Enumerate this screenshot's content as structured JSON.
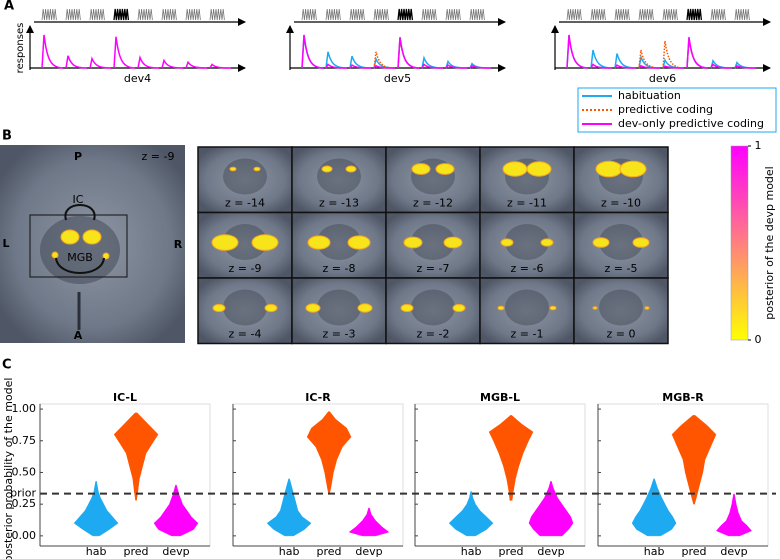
{
  "panel_a": {
    "label": "A",
    "ylabel": "responses",
    "series": [
      {
        "name": "habituation",
        "color": "#1eaaf1",
        "style": "solid"
      },
      {
        "name": "predictive coding",
        "color": "#ff5500",
        "style": "dotted"
      },
      {
        "name": "dev-only predictive coding",
        "color": "#ff00ff",
        "style": "solid"
      }
    ],
    "plots": [
      {
        "xlabel": "dev4",
        "deviant": 4,
        "responses": [
          [
            null,
            null,
            null,
            null,
            null,
            null,
            null,
            null
          ],
          [
            null,
            null,
            null,
            null,
            null,
            null,
            null,
            null
          ],
          [
            0.92,
            0.34,
            0.26,
            0.87,
            0.29,
            0.21,
            0.16,
            0.1
          ]
        ]
      },
      {
        "xlabel": "dev5",
        "deviant": 5,
        "responses": [
          [
            0.9,
            0.45,
            0.33,
            0.25,
            0.85,
            0.28,
            0.18,
            0.12
          ],
          [
            null,
            null,
            null,
            0.45,
            0.85,
            null,
            null,
            null
          ],
          [
            0.92,
            0.1,
            0.08,
            0.06,
            0.85,
            0.1,
            0.08,
            0.06
          ]
        ]
      },
      {
        "xlabel": "dev6",
        "deviant": 6,
        "responses": [
          [
            0.9,
            0.5,
            0.4,
            0.3,
            0.22,
            0.85,
            0.2,
            0.15
          ],
          [
            null,
            null,
            null,
            0.5,
            0.75,
            0.85,
            null,
            null
          ],
          [
            0.92,
            0.1,
            0.08,
            0.06,
            0.05,
            0.85,
            0.1,
            0.06
          ]
        ]
      }
    ]
  },
  "panel_b": {
    "label": "B",
    "overview": {
      "top": "P",
      "slice": "z = -9",
      "ic": "IC",
      "left": "L",
      "right": "R",
      "mgb": "MGB",
      "bottom": "A"
    },
    "slices": [
      "z = -14",
      "z = -13",
      "z = -12",
      "z = -11",
      "z = -10",
      "z = -9",
      "z = -8",
      "z = -7",
      "z = -6",
      "z = -5",
      "z = -4",
      "z = -3",
      "z = -2",
      "z = -1",
      "z = 0"
    ],
    "colorbar": {
      "label": "posterior of the devp model",
      "ylim": [
        0,
        1
      ],
      "yticks": [
        0,
        1
      ],
      "colors": [
        "#ffff00",
        "#ff00ff"
      ]
    }
  },
  "chart_data": {
    "type": "violin",
    "label": "C",
    "ylabel": "posterior probability of the model",
    "ylim": [
      -0.08,
      1.04
    ],
    "yticks": [
      {
        "value": 0,
        "label": "0.00"
      },
      {
        "value": 0.25,
        "label": "0.25"
      },
      {
        "value": 0.333,
        "label": "prior"
      },
      {
        "value": 0.5,
        "label": "0.50"
      },
      {
        "value": 0.75,
        "label": "0.75"
      },
      {
        "value": 1,
        "label": "1.00"
      }
    ],
    "categories": [
      "hab",
      "pred",
      "devp"
    ],
    "colors": [
      "#1eaaf1",
      "#ff5500",
      "#ff00ff"
    ],
    "panels": [
      {
        "title": "IC-L",
        "violins": [
          {
            "y": [
              0.0,
              0.05,
              0.1,
              0.15,
              0.2,
              0.25,
              0.3,
              0.35,
              0.43
            ],
            "density": [
              0.15,
              0.6,
              1,
              0.75,
              0.5,
              0.35,
              0.2,
              0.1,
              0.02
            ]
          },
          {
            "y": [
              0.28,
              0.35,
              0.45,
              0.55,
              0.65,
              0.72,
              0.8,
              0.88,
              0.97
            ],
            "density": [
              0.02,
              0.08,
              0.15,
              0.3,
              0.45,
              0.7,
              1,
              0.55,
              0.05
            ]
          },
          {
            "y": [
              0.0,
              0.05,
              0.1,
              0.15,
              0.2,
              0.25,
              0.32,
              0.4
            ],
            "density": [
              0.2,
              0.8,
              1,
              0.7,
              0.5,
              0.3,
              0.15,
              0.02
            ]
          }
        ]
      },
      {
        "title": "IC-R",
        "violins": [
          {
            "y": [
              0.0,
              0.05,
              0.1,
              0.15,
              0.2,
              0.3,
              0.4,
              0.45
            ],
            "density": [
              0.2,
              0.7,
              1,
              0.6,
              0.4,
              0.25,
              0.1,
              0.02
            ]
          },
          {
            "y": [
              0.33,
              0.4,
              0.5,
              0.6,
              0.7,
              0.78,
              0.85,
              0.92,
              0.98
            ],
            "density": [
              0.02,
              0.1,
              0.2,
              0.35,
              0.6,
              1,
              0.8,
              0.3,
              0.03
            ]
          },
          {
            "y": [
              0.0,
              0.03,
              0.07,
              0.12,
              0.17,
              0.22
            ],
            "density": [
              0.3,
              0.9,
              0.6,
              0.3,
              0.1,
              0.02
            ]
          }
        ]
      },
      {
        "title": "MGB-L",
        "violins": [
          {
            "y": [
              0.0,
              0.05,
              0.1,
              0.15,
              0.2,
              0.25,
              0.3,
              0.35
            ],
            "density": [
              0.2,
              0.7,
              1,
              0.7,
              0.4,
              0.2,
              0.08,
              0.02
            ]
          },
          {
            "y": [
              0.28,
              0.35,
              0.45,
              0.55,
              0.65,
              0.75,
              0.82,
              0.88,
              0.95
            ],
            "density": [
              0.05,
              0.1,
              0.2,
              0.35,
              0.55,
              0.8,
              1,
              0.5,
              0.03
            ]
          },
          {
            "y": [
              0.0,
              0.05,
              0.1,
              0.15,
              0.2,
              0.25,
              0.3,
              0.38,
              0.43
            ],
            "density": [
              0.5,
              0.8,
              1,
              0.9,
              0.7,
              0.5,
              0.3,
              0.1,
              0.02
            ]
          }
        ]
      },
      {
        "title": "MGB-R",
        "violins": [
          {
            "y": [
              0.0,
              0.05,
              0.1,
              0.15,
              0.2,
              0.25,
              0.3,
              0.38,
              0.45
            ],
            "density": [
              0.3,
              0.8,
              1,
              0.85,
              0.65,
              0.5,
              0.35,
              0.15,
              0.02
            ]
          },
          {
            "y": [
              0.25,
              0.3,
              0.4,
              0.5,
              0.6,
              0.7,
              0.8,
              0.87,
              0.95
            ],
            "density": [
              0.02,
              0.1,
              0.25,
              0.4,
              0.5,
              0.75,
              1,
              0.6,
              0.05
            ]
          },
          {
            "y": [
              0.0,
              0.04,
              0.08,
              0.12,
              0.18,
              0.25,
              0.33
            ],
            "density": [
              0.25,
              0.8,
              0.6,
              0.35,
              0.2,
              0.1,
              0.02
            ]
          }
        ]
      }
    ]
  }
}
